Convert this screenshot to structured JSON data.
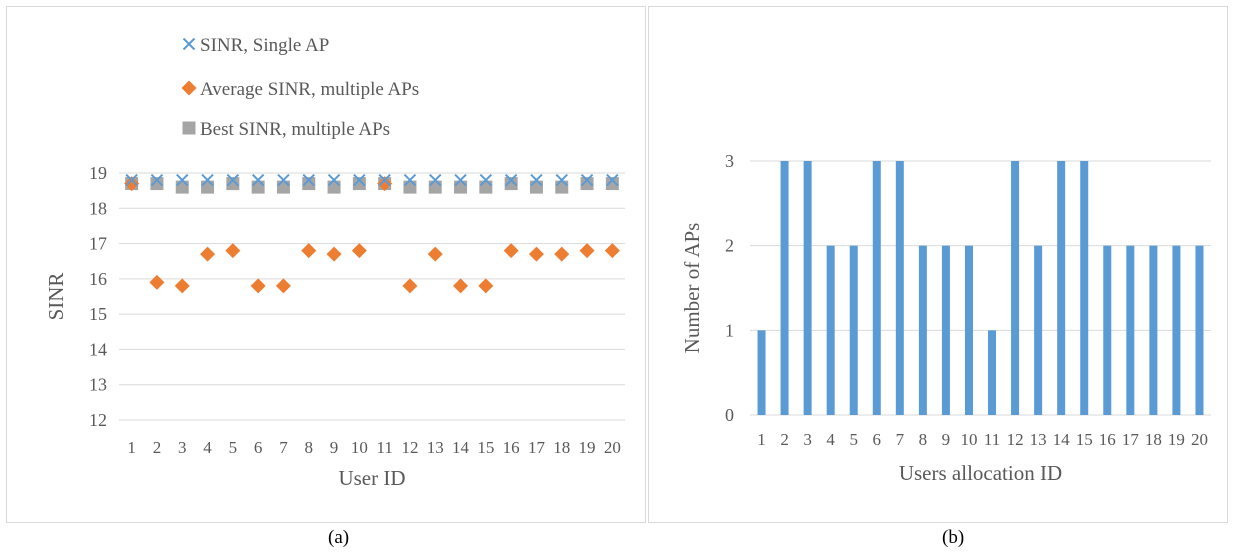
{
  "chart_data": [
    {
      "type": "scatter",
      "xlabel": "User ID",
      "ylabel": "SINR",
      "ylim": [
        12,
        19
      ],
      "yticks": [
        12,
        13,
        14,
        15,
        16,
        17,
        18,
        19
      ],
      "categories": [
        "1",
        "2",
        "3",
        "4",
        "5",
        "6",
        "7",
        "8",
        "9",
        "10",
        "11",
        "12",
        "13",
        "14",
        "15",
        "16",
        "17",
        "18",
        "19",
        "20"
      ],
      "legend_position": "top",
      "grid": true,
      "series": [
        {
          "name": "SINR, Single AP",
          "marker": "x",
          "color": "#5b9bd5",
          "values": [
            18.8,
            18.8,
            18.8,
            18.8,
            18.8,
            18.8,
            18.8,
            18.8,
            18.8,
            18.8,
            18.8,
            18.8,
            18.8,
            18.8,
            18.8,
            18.8,
            18.8,
            18.8,
            18.8,
            18.8
          ]
        },
        {
          "name": "Average SINR, multiple APs",
          "marker": "diamond",
          "color": "#ed7d31",
          "values": [
            18.7,
            15.9,
            15.8,
            16.7,
            16.8,
            15.8,
            15.8,
            16.8,
            16.7,
            16.8,
            18.7,
            15.8,
            16.7,
            15.8,
            15.8,
            16.8,
            16.7,
            16.7,
            16.8,
            16.8
          ]
        },
        {
          "name": "Best SINR, multiple APs",
          "marker": "square",
          "color": "#a5a5a5",
          "values": [
            18.7,
            18.7,
            18.6,
            18.6,
            18.7,
            18.6,
            18.6,
            18.7,
            18.6,
            18.7,
            18.7,
            18.6,
            18.6,
            18.6,
            18.6,
            18.7,
            18.6,
            18.6,
            18.7,
            18.7
          ]
        }
      ]
    },
    {
      "type": "bar",
      "xlabel": "Users allocation ID",
      "ylabel": "Number of APs",
      "ylim": [
        0,
        3
      ],
      "yticks": [
        0,
        1,
        2,
        3
      ],
      "categories": [
        "1",
        "2",
        "3",
        "4",
        "5",
        "6",
        "7",
        "8",
        "9",
        "10",
        "11",
        "12",
        "13",
        "14",
        "15",
        "16",
        "17",
        "18",
        "19",
        "20"
      ],
      "grid": true,
      "color": "#5b9bd5",
      "values": [
        1,
        3,
        3,
        2,
        2,
        3,
        3,
        2,
        2,
        2,
        1,
        3,
        2,
        3,
        3,
        2,
        2,
        2,
        2,
        2
      ]
    }
  ],
  "captions": {
    "a": "(a)",
    "b": "(b)"
  }
}
